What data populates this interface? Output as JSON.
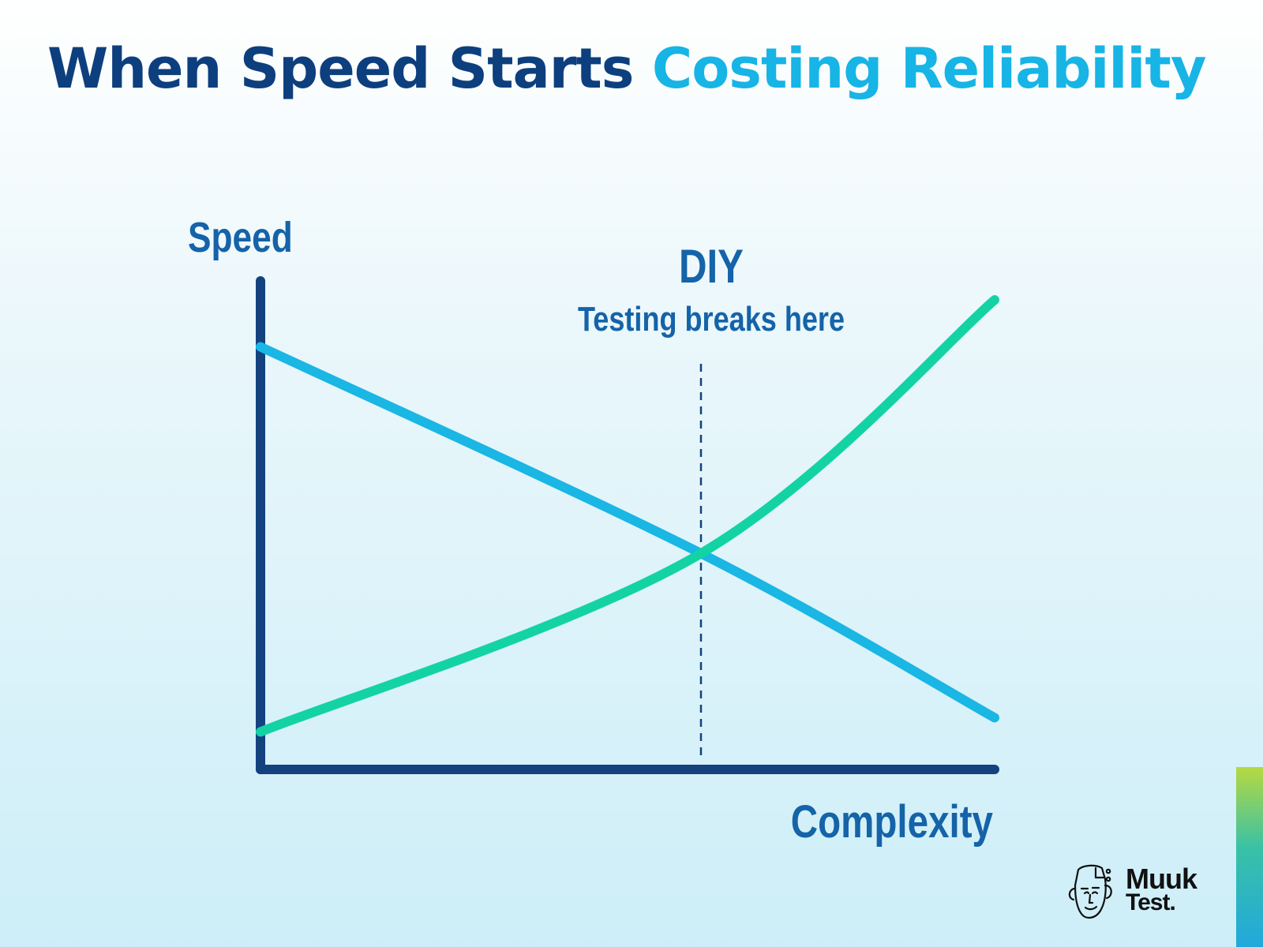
{
  "title": {
    "part1": "When Speed Starts",
    "part2": "Costing Reliability"
  },
  "colors": {
    "title_dark": "#0d3f7e",
    "title_accent": "#17b4e6",
    "axis": "#13427f",
    "label": "#1563a8",
    "speed_curve": "#1ab6e4",
    "complexity_curve": "#13d3a4",
    "dashed_line": "#13427f"
  },
  "chart_data": {
    "type": "line",
    "ylabel": "Speed",
    "xlabel": "Complexity",
    "x_ticks_shown": false,
    "y_ticks_shown": false,
    "grid": false,
    "legend": "none",
    "series": [
      {
        "color": "#1ab6e4",
        "trend": "decreasing",
        "points": [
          [
            0,
            0.9
          ],
          [
            0.6,
            0.46
          ],
          [
            1,
            0.11
          ]
        ]
      },
      {
        "color": "#13d3a4",
        "trend": "increasing",
        "points": [
          [
            0,
            0.08
          ],
          [
            0.6,
            0.46
          ],
          [
            1,
            1.0
          ]
        ]
      }
    ],
    "annotations": [
      {
        "type": "vline",
        "x": 0.6,
        "style": "dashed",
        "title": "DIY",
        "text": "Testing breaks here"
      }
    ]
  },
  "logo": {
    "line1": "Muuk",
    "line2": "Test."
  }
}
